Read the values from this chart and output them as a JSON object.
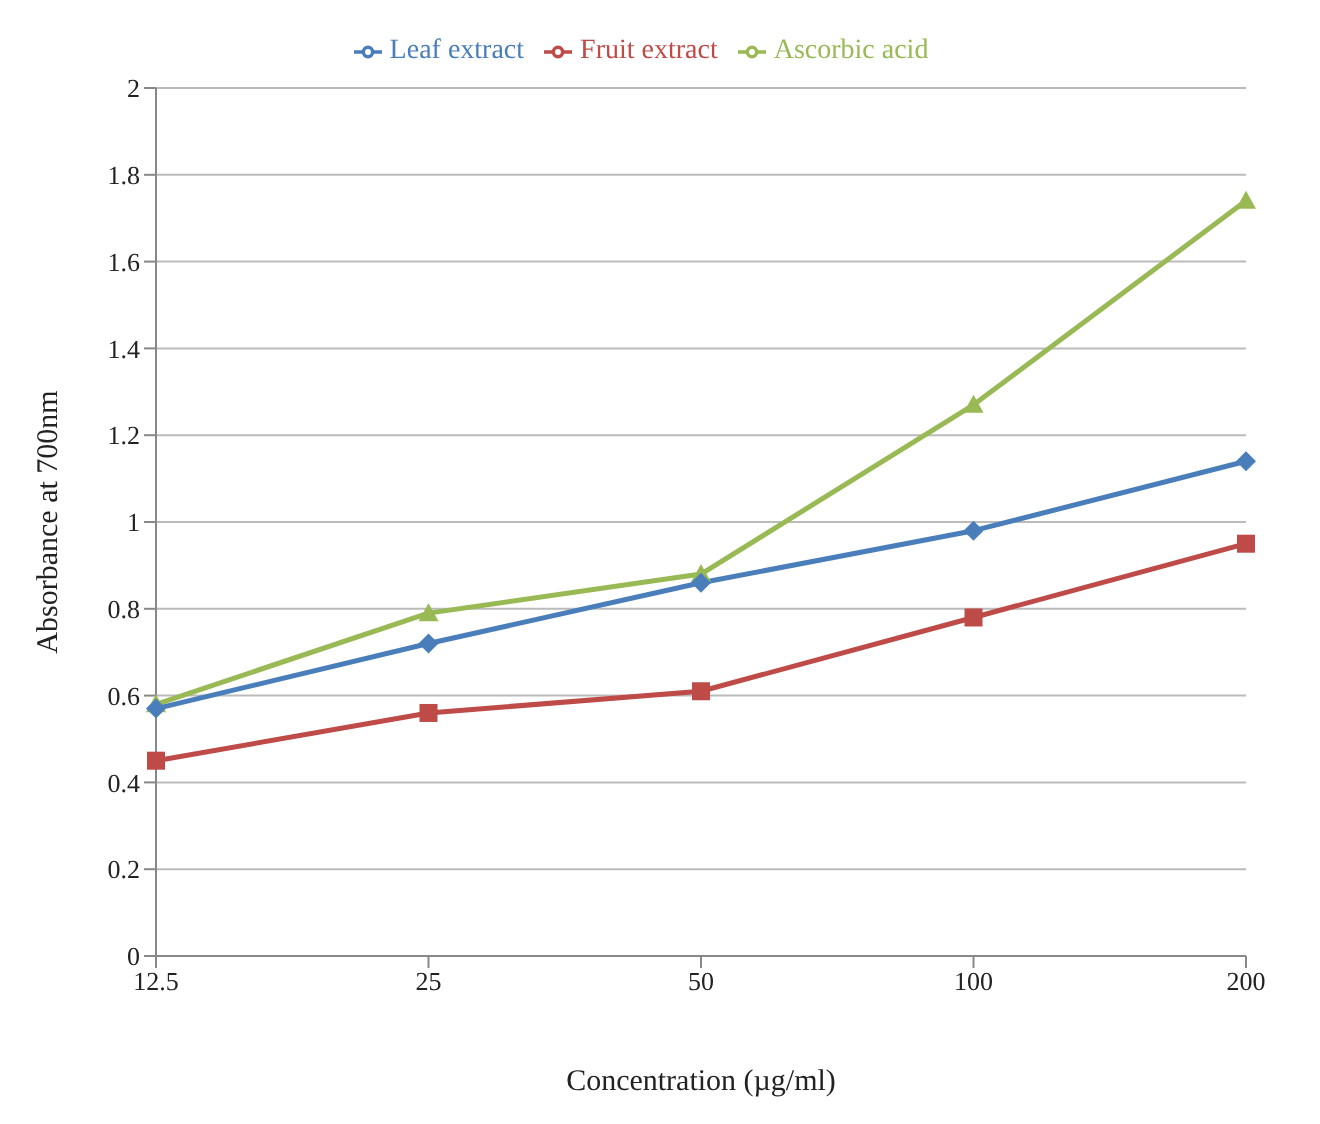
{
  "chart_data": {
    "type": "line",
    "xlabel": "Concentration (µg/ml)",
    "ylabel": "Absorbance at 700nm",
    "categories": [
      "12.5",
      "25",
      "50",
      "100",
      "200"
    ],
    "series": [
      {
        "name": "Leaf extract",
        "color": "#4a7ebb",
        "marker": "diamond",
        "values": [
          0.57,
          0.72,
          0.86,
          0.98,
          1.14
        ]
      },
      {
        "name": "Fruit extract",
        "color": "#be4b48",
        "marker": "square",
        "values": [
          0.45,
          0.56,
          0.61,
          0.78,
          0.95
        ]
      },
      {
        "name": "Ascorbic acid",
        "color": "#98b954",
        "marker": "triangle",
        "values": [
          0.58,
          0.79,
          0.88,
          1.27,
          1.74
        ]
      }
    ],
    "ylim": [
      0,
      2
    ],
    "yticks": [
      0,
      0.2,
      0.4,
      0.6,
      0.8,
      1,
      1.2,
      1.4,
      1.6,
      1.8,
      2
    ],
    "grid": "y",
    "legend": "top"
  }
}
